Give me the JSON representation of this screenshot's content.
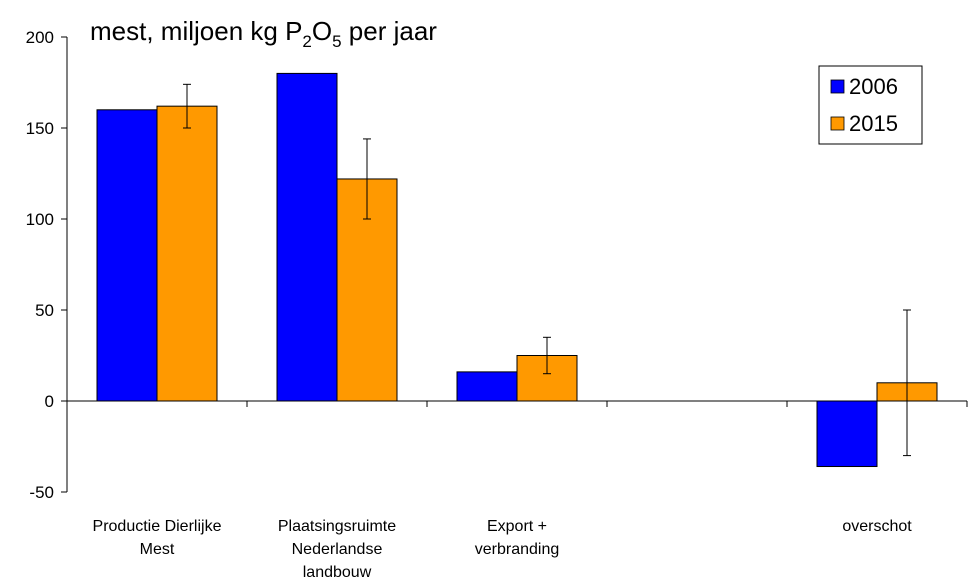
{
  "chart_data": {
    "type": "bar",
    "title": {
      "prefix": "mest, miljoen kg P",
      "sub1": "2",
      "mid": "O",
      "sub2": "5",
      "suffix": " per jaar"
    },
    "categories": [
      [
        "Productie Dierlijke",
        "Mest"
      ],
      [
        "Plaatsingsruimte",
        "Nederlandse",
        "landbouw"
      ],
      [
        "Export +",
        "verbranding"
      ],
      [
        ""
      ],
      [
        "overschot"
      ]
    ],
    "series": [
      {
        "name": "2006",
        "color": "#0000FF",
        "values": [
          160,
          180,
          16,
          null,
          -36
        ],
        "error_low": [
          null,
          null,
          null,
          null,
          null
        ],
        "error_high": [
          null,
          null,
          null,
          null,
          null
        ]
      },
      {
        "name": "2015",
        "color": "#FF9900",
        "values": [
          162,
          122,
          25,
          null,
          10
        ],
        "error_low": [
          150,
          100,
          15,
          null,
          -30
        ],
        "error_high": [
          174,
          144,
          35,
          null,
          50
        ]
      }
    ],
    "yticks": [
      "200",
      "150",
      "100",
      "50",
      "0",
      "-50"
    ],
    "ylim": [
      -50,
      200
    ],
    "legend_position": "top-right",
    "grid": false
  }
}
